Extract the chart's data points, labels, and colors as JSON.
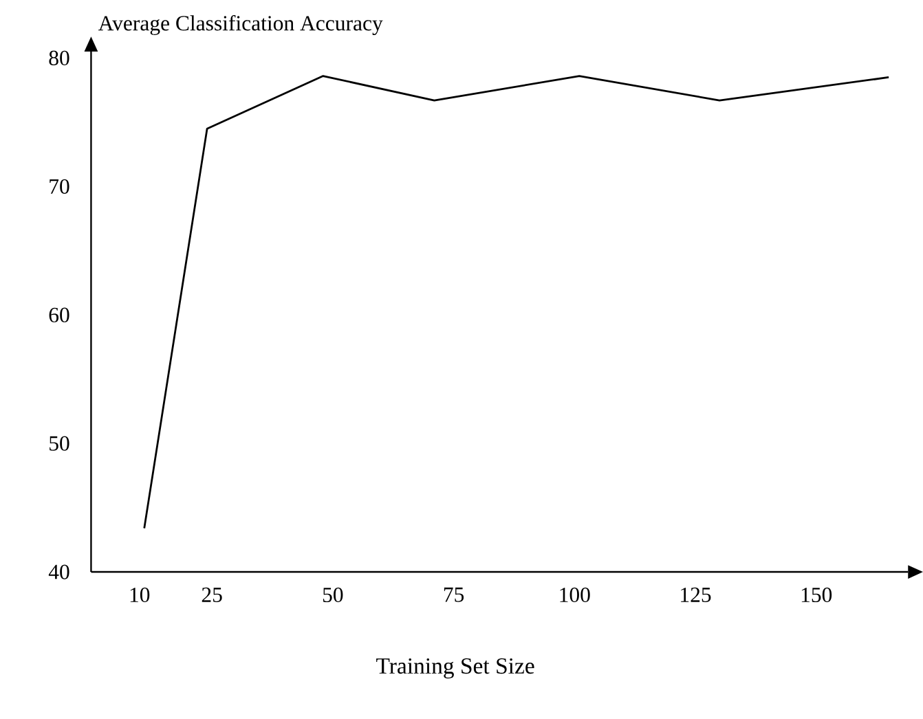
{
  "chart_data": {
    "type": "line",
    "ylabel": "Average Classification Accuracy",
    "xlabel": "Training Set Size",
    "x": [
      11,
      24,
      48,
      71,
      101,
      130,
      165
    ],
    "series": [
      {
        "color": "#000000",
        "values": [
          43.4,
          74.5,
          78.6,
          76.7,
          78.6,
          76.7,
          78.5
        ]
      }
    ],
    "xlim": [
      0,
      169
    ],
    "ylim": [
      40,
      80.5
    ],
    "xticks": [
      10,
      25,
      50,
      75,
      100,
      125,
      150
    ],
    "yticks": [
      40,
      50,
      60,
      70,
      80
    ],
    "grid": false
  }
}
